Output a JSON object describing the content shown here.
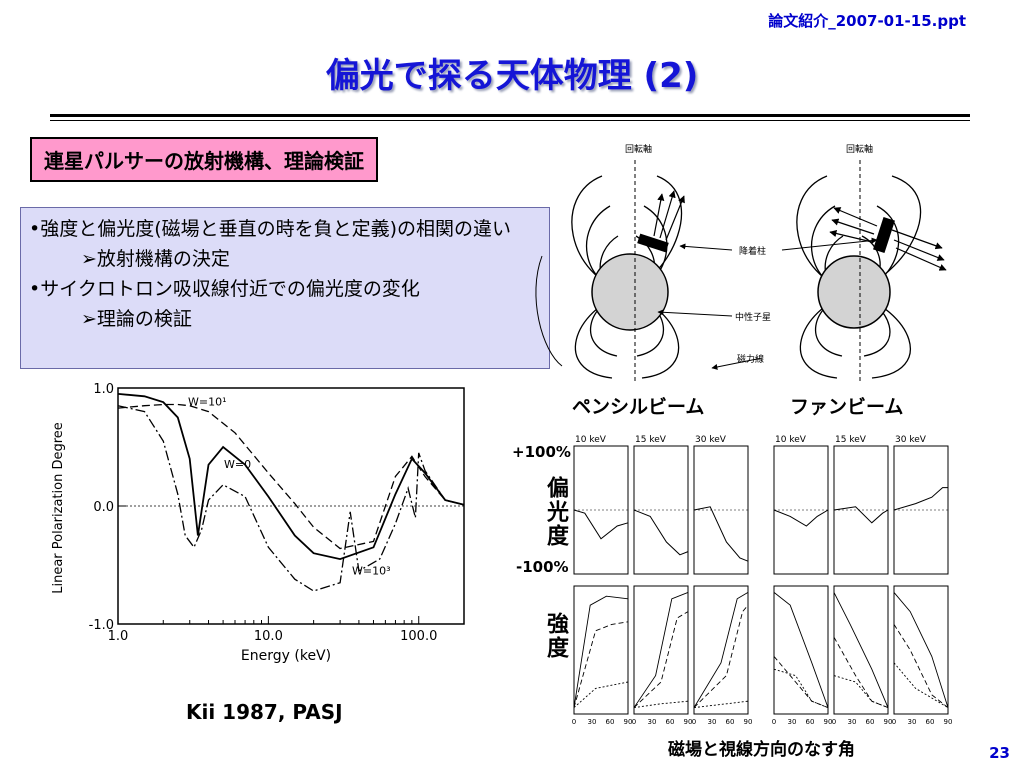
{
  "file_label": "論文紹介_2007-01-15.ppt",
  "title": "偏光で探る天体物理 (2)",
  "topic": "連星パルサーの放射機構、理論検証",
  "bullets": [
    {
      "text": "•強度と偏光度(磁場と垂直の時を負と定義)の相関の違い",
      "level": 0
    },
    {
      "text": "➢放射機構の決定",
      "level": 1
    },
    {
      "text": "•サイクロトロン吸収線付近での偏光度の変化",
      "level": 0
    },
    {
      "text": "➢理論の検証",
      "level": 1
    }
  ],
  "diagram": {
    "rotation_axis_left": "回転軸",
    "rotation_axis_right": "回転軸",
    "accretion_column": "降着柱",
    "neutron_star": "中性子星",
    "field_lines": "磁力線"
  },
  "pencil_beam_label": "ペンシルビーム",
  "fan_beam_label": "ファンビーム",
  "pct_top": "+100%",
  "pct_bottom": "-100%",
  "polarization_label": "偏光度",
  "intensity_label": "強度",
  "panel_xlabel": "磁場と視線方向のなす角",
  "citation": "Kii 1987, PASJ",
  "page_number": "23",
  "chart_data": [
    {
      "type": "line",
      "xlabel": "Energy (keV)",
      "ylabel": "Linear Polarization Degree",
      "xscale": "log",
      "xlim": [
        1,
        200
      ],
      "ylim": [
        -1,
        1
      ],
      "xticks": [
        "1.0",
        "10.0",
        "100.0"
      ],
      "yticks": [
        "1.0",
        "0.0",
        "-1.0"
      ],
      "series": [
        {
          "name": "W=10¹",
          "x": [
            1,
            1.5,
            2,
            2.5,
            3,
            4,
            6,
            10,
            15,
            20,
            30,
            50,
            70,
            90,
            110,
            150,
            200
          ],
          "y": [
            0.83,
            0.85,
            0.86,
            0.86,
            0.85,
            0.8,
            0.62,
            0.28,
            0.02,
            -0.18,
            -0.36,
            -0.3,
            0.25,
            0.42,
            0.25,
            0.05,
            0.01
          ]
        },
        {
          "name": "W=0",
          "x": [
            1,
            1.5,
            2,
            2.5,
            3,
            3.4,
            4,
            5,
            7,
            10,
            15,
            20,
            30,
            50,
            70,
            90,
            110,
            150,
            200
          ],
          "y": [
            0.95,
            0.93,
            0.88,
            0.75,
            0.4,
            -0.25,
            0.35,
            0.5,
            0.35,
            0.08,
            -0.25,
            -0.4,
            -0.45,
            -0.35,
            0.1,
            0.4,
            0.28,
            0.05,
            0.01
          ]
        },
        {
          "name": "W=10³",
          "x": [
            1,
            1.5,
            2,
            2.5,
            2.8,
            3.2,
            3.6,
            4,
            5,
            7,
            10,
            15,
            20,
            30,
            35,
            40,
            55,
            70,
            85,
            95,
            100,
            110,
            150,
            200
          ],
          "y": [
            0.85,
            0.8,
            0.55,
            0.1,
            -0.25,
            -0.35,
            -0.2,
            0.05,
            0.18,
            0.08,
            -0.35,
            -0.62,
            -0.72,
            -0.65,
            -0.05,
            -0.55,
            -0.45,
            -0.15,
            0.15,
            -0.1,
            0.45,
            0.3,
            0.05,
            0.01
          ]
        }
      ]
    },
    {
      "type": "line",
      "title": "ペンシルビーム",
      "panels": [
        "10 keV",
        "15 keV",
        "30 keV"
      ],
      "xticks": [
        "0",
        "30",
        "60",
        "90"
      ],
      "polarization_ylim": [
        "+100%",
        "-100%"
      ]
    },
    {
      "type": "line",
      "title": "ファンビーム",
      "panels": [
        "10 keV",
        "15 keV",
        "30 keV"
      ],
      "xticks": [
        "0",
        "30",
        "60",
        "90"
      ]
    }
  ]
}
